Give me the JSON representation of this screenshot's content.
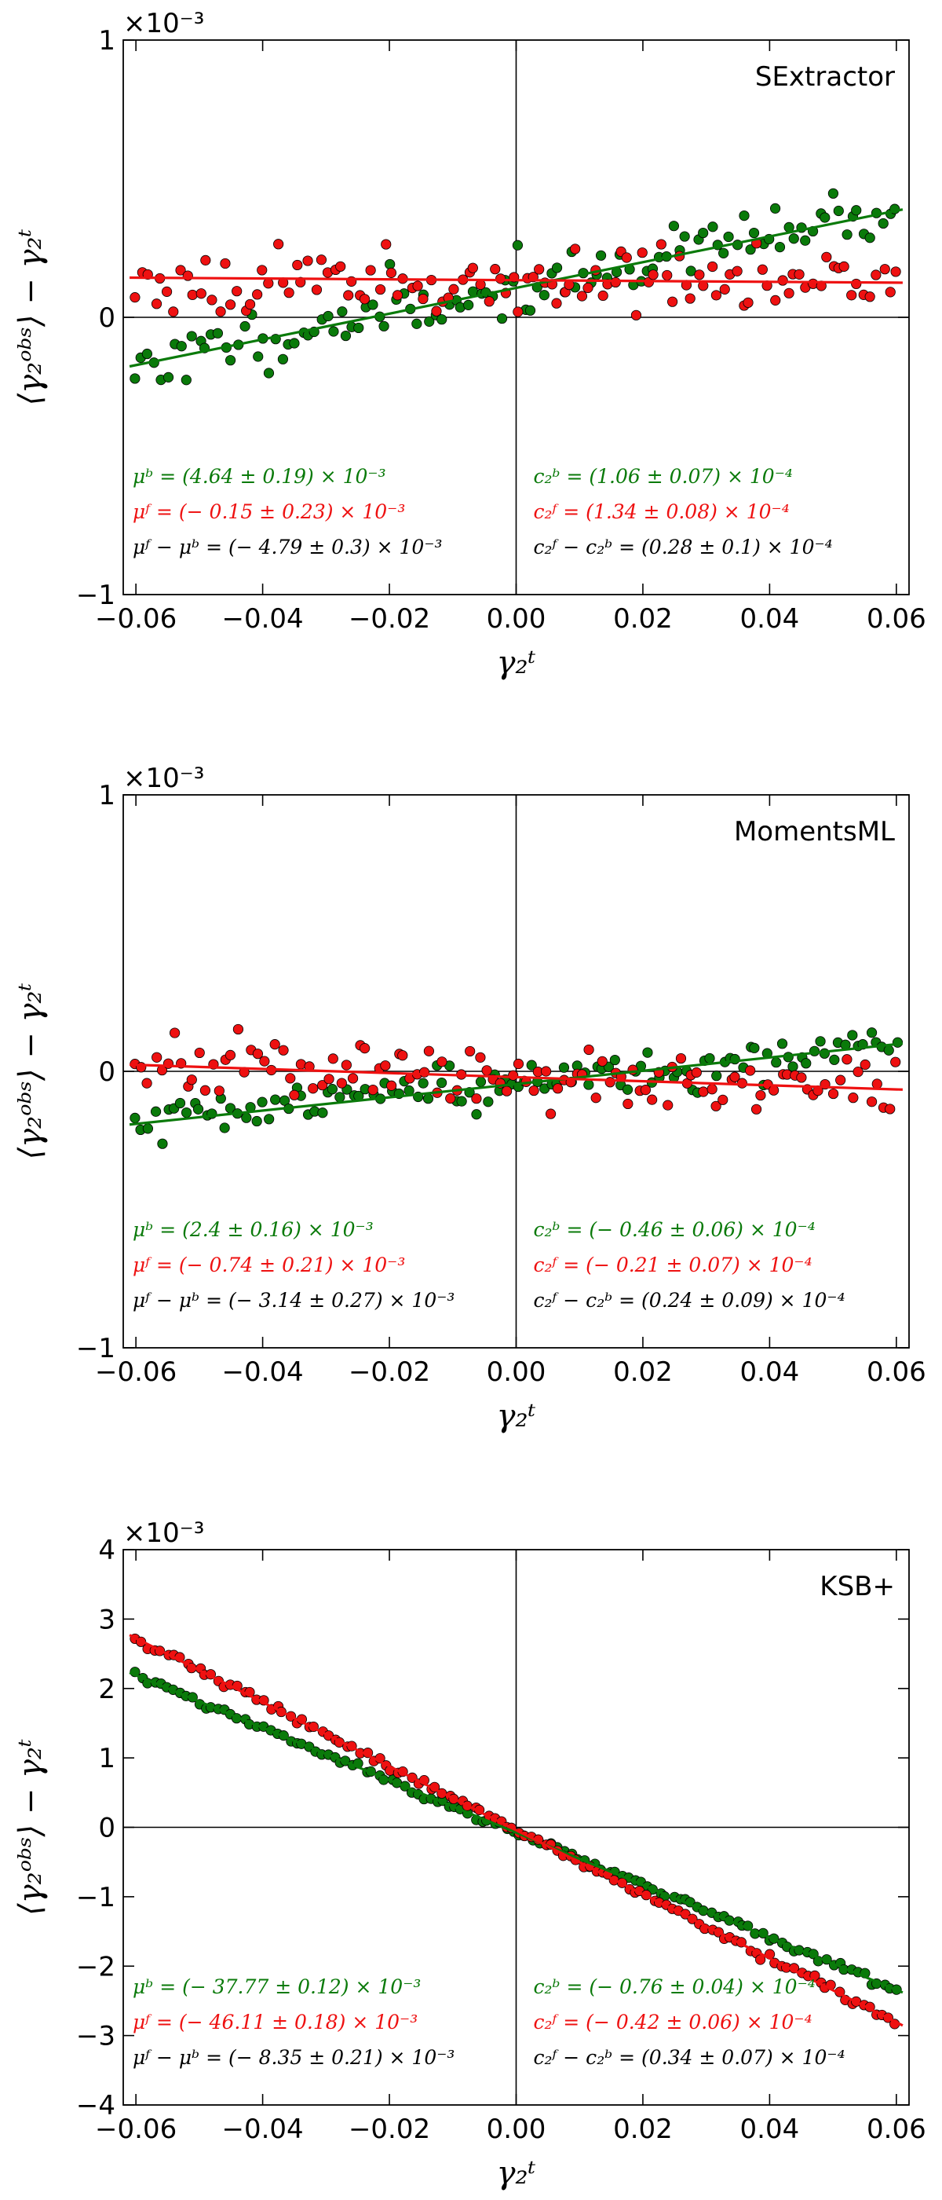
{
  "colors": {
    "bulge": "#0a7a0a",
    "fixed": "#ee1111",
    "combined": "#000000"
  },
  "chart_data": [
    {
      "type": "scatter",
      "title": "SExtractor",
      "xlabel": "γ₂ᵗ",
      "ylabel": "⟨γ₂ᵒᵇˢ⟩ − γ₂ᵗ",
      "xlim": [
        -0.062,
        0.062
      ],
      "ylim": [
        -1,
        1
      ],
      "y_scale_label": "×10⁻³",
      "xticks": [
        -0.06,
        -0.04,
        -0.02,
        0.0,
        0.02,
        0.04,
        0.06
      ],
      "xtick_labels": [
        "−0.06",
        "−0.04",
        "−0.02",
        "0.00",
        "0.02",
        "0.04",
        "0.06"
      ],
      "yticks": [
        -1,
        0,
        1
      ],
      "ytick_labels": [
        "−1",
        "0",
        "1"
      ],
      "series": [
        {
          "name": "bulge (green)",
          "color": "#0a7a0a",
          "fit_intercept": 0.106,
          "fit_slope": 4.64,
          "noise": 0.05,
          "seed": 11
        },
        {
          "name": "fixed (red)",
          "color": "#ee1111",
          "fit_intercept": 0.134,
          "fit_slope": -0.15,
          "noise": 0.055,
          "seed": 23
        }
      ],
      "annotations_left": [
        {
          "text": "μᵇ = (4.64 ± 0.19) × 10⁻³",
          "color": "#0a7a0a"
        },
        {
          "text": "μᶠ = (− 0.15 ± 0.23) × 10⁻³",
          "color": "#ee1111"
        },
        {
          "text": "μᶠ − μᵇ = (− 4.79 ± 0.3) × 10⁻³",
          "color": "#000000"
        }
      ],
      "annotations_right": [
        {
          "text": "c₂ᵇ = (1.06 ± 0.07) × 10⁻⁴",
          "color": "#0a7a0a"
        },
        {
          "text": "c₂ᶠ = (1.34 ± 0.08) × 10⁻⁴",
          "color": "#ee1111"
        },
        {
          "text": "c₂ᶠ − c₂ᵇ = (0.28 ± 0.1) × 10⁻⁴",
          "color": "#000000"
        }
      ]
    },
    {
      "type": "scatter",
      "title": "MomentsML",
      "xlabel": "γ₂ᵗ",
      "ylabel": "⟨γ₂ᵒᵇˢ⟩ − γ₂ᵗ",
      "xlim": [
        -0.062,
        0.062
      ],
      "ylim": [
        -1,
        1
      ],
      "y_scale_label": "×10⁻³",
      "xticks": [
        -0.06,
        -0.04,
        -0.02,
        0.0,
        0.02,
        0.04,
        0.06
      ],
      "xtick_labels": [
        "−0.06",
        "−0.04",
        "−0.02",
        "0.00",
        "0.02",
        "0.04",
        "0.06"
      ],
      "yticks": [
        -1,
        0,
        1
      ],
      "ytick_labels": [
        "−1",
        "0",
        "1"
      ],
      "series": [
        {
          "name": "bulge (green)",
          "color": "#0a7a0a",
          "fit_intercept": -0.046,
          "fit_slope": 2.4,
          "noise": 0.04,
          "seed": 37
        },
        {
          "name": "fixed (red)",
          "color": "#ee1111",
          "fit_intercept": -0.021,
          "fit_slope": -0.74,
          "noise": 0.055,
          "seed": 41
        }
      ],
      "annotations_left": [
        {
          "text": "μᵇ = (2.4 ± 0.16) × 10⁻³",
          "color": "#0a7a0a"
        },
        {
          "text": "μᶠ = (− 0.74 ± 0.21) × 10⁻³",
          "color": "#ee1111"
        },
        {
          "text": "μᶠ − μᵇ = (− 3.14 ± 0.27) × 10⁻³",
          "color": "#000000"
        }
      ],
      "annotations_right": [
        {
          "text": "c₂ᵇ = (− 0.46 ± 0.06) × 10⁻⁴",
          "color": "#0a7a0a"
        },
        {
          "text": "c₂ᶠ = (− 0.21 ± 0.07) × 10⁻⁴",
          "color": "#ee1111"
        },
        {
          "text": "c₂ᶠ − c₂ᵇ = (0.24 ± 0.09) × 10⁻⁴",
          "color": "#000000"
        }
      ]
    },
    {
      "type": "scatter",
      "title": "KSB+",
      "xlabel": "γ₂ᵗ",
      "ylabel": "⟨γ₂ᵒᵇˢ⟩ − γ₂ᵗ",
      "xlim": [
        -0.062,
        0.062
      ],
      "ylim": [
        -4,
        4
      ],
      "y_scale_label": "×10⁻³",
      "xticks": [
        -0.06,
        -0.04,
        -0.02,
        0.0,
        0.02,
        0.04,
        0.06
      ],
      "xtick_labels": [
        "−0.06",
        "−0.04",
        "−0.02",
        "0.00",
        "0.02",
        "0.04",
        "0.06"
      ],
      "yticks": [
        -4,
        -3,
        -2,
        -1,
        0,
        1,
        2,
        3,
        4
      ],
      "ytick_labels": [
        "−4",
        "−3",
        "−2",
        "−1",
        "0",
        "1",
        "2",
        "3",
        "4"
      ],
      "series": [
        {
          "name": "bulge (green)",
          "color": "#0a7a0a",
          "fit_intercept": -0.076,
          "fit_slope": -37.77,
          "noise": 0.025,
          "seed": 53
        },
        {
          "name": "fixed (red)",
          "color": "#ee1111",
          "fit_intercept": -0.042,
          "fit_slope": -46.11,
          "noise": 0.03,
          "seed": 67
        }
      ],
      "annotations_left": [
        {
          "text": "μᵇ = (− 37.77 ± 0.12) × 10⁻³",
          "color": "#0a7a0a"
        },
        {
          "text": "μᶠ = (− 46.11 ± 0.18) × 10⁻³",
          "color": "#ee1111"
        },
        {
          "text": "μᶠ − μᵇ = (− 8.35 ± 0.21) × 10⁻³",
          "color": "#000000"
        }
      ],
      "annotations_right": [
        {
          "text": "c₂ᵇ = (− 0.76 ± 0.04) × 10⁻⁴",
          "color": "#0a7a0a"
        },
        {
          "text": "c₂ᶠ = (− 0.42 ± 0.06) × 10⁻⁴",
          "color": "#ee1111"
        },
        {
          "text": "c₂ᶠ − c₂ᵇ = (0.34 ± 0.07) × 10⁻⁴",
          "color": "#000000"
        }
      ]
    }
  ]
}
